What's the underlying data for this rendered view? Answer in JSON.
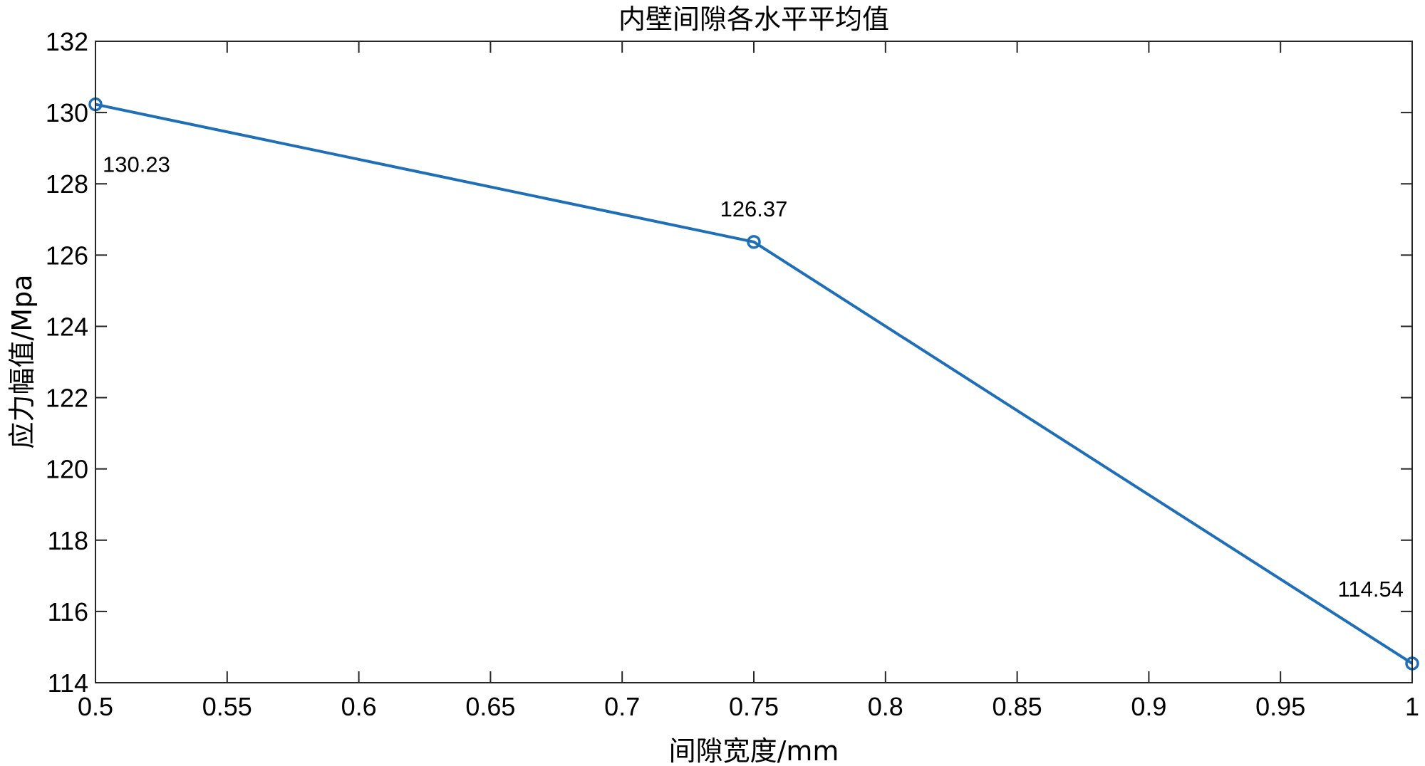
{
  "chart_data": {
    "type": "line",
    "title": "内壁间隙各水平平均值",
    "xlabel": "间隙宽度/mm",
    "ylabel": "应力幅值/Mpa",
    "xlim": [
      0.5,
      1
    ],
    "ylim": [
      114,
      132
    ],
    "xticks": [
      "0.5",
      "0.55",
      "0.6",
      "0.65",
      "0.7",
      "0.75",
      "0.8",
      "0.85",
      "0.9",
      "0.95",
      "1"
    ],
    "yticks": [
      "114",
      "116",
      "118",
      "120",
      "122",
      "124",
      "126",
      "128",
      "130",
      "132"
    ],
    "grid": false,
    "series": [
      {
        "x": [
          0.5,
          0.75,
          1
        ],
        "y": [
          130.23,
          126.37,
          114.54
        ],
        "color": "#1f6fb8",
        "marker": "circle"
      }
    ],
    "annotations": [
      {
        "text": "130.23",
        "x": 0.5,
        "y": 130.23
      },
      {
        "text": "126.37",
        "x": 0.75,
        "y": 126.37
      },
      {
        "text": "114.54",
        "x": 1,
        "y": 114.54
      }
    ]
  }
}
